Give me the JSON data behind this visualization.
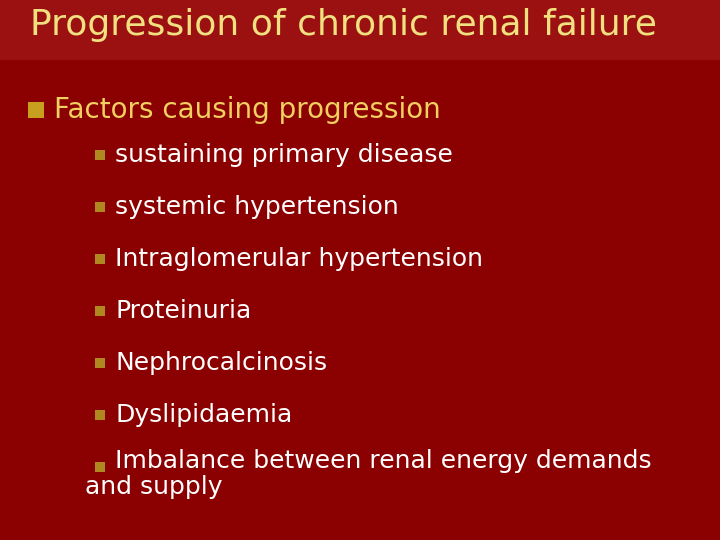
{
  "title": "Progression of chronic renal failure",
  "title_color": "#F0E080",
  "title_fontsize": 26,
  "bg_color": "#8B0000",
  "bg_top_color": "#C0392B",
  "bullet1_color": "#F0D060",
  "bullet1_text": "Factors causing progression",
  "bullet1_fontsize": 20,
  "bullet2_color": "#FFFFFF",
  "bullet2_fontsize": 18,
  "bullet_square_color": "#C8A020",
  "sub_bullet_color": "#B08820",
  "sub_items": [
    "sustaining primary disease",
    "systemic hypertension",
    "Intraglomerular hypertension",
    "Proteinuria",
    "Nephrocalcinosis",
    "Dyslipidaemia",
    "Imbalance between renal energy demands\nand supply"
  ]
}
